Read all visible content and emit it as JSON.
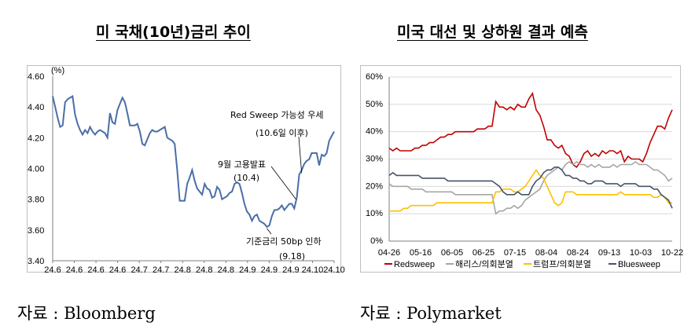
{
  "titles": {
    "left": "미 국채(10년)금리 추이",
    "right": "미국 대선 및 상하원 결과 예측"
  },
  "sources": {
    "left": "자료 : Bloomberg",
    "right": "자료 : Polymarket"
  },
  "chart_data": [
    {
      "type": "line",
      "unit_label": "(%)",
      "ylim": [
        3.4,
        4.6
      ],
      "y_ticks": [
        "4.60",
        "4.40",
        "4.20",
        "4.00",
        "3.80",
        "3.60",
        "3.40"
      ],
      "x_ticks": [
        "24.6",
        "24.6",
        "24.6",
        "24.6",
        "24.7",
        "24.7",
        "24.8",
        "24.8",
        "24.8",
        "24.9",
        "24.9",
        "24.9",
        "24.10",
        "24.10"
      ],
      "color": "#4a6ea8",
      "values": [
        4.47,
        4.4,
        4.33,
        4.27,
        4.28,
        4.43,
        4.45,
        4.46,
        4.47,
        4.35,
        4.29,
        4.25,
        4.22,
        4.25,
        4.23,
        4.27,
        4.24,
        4.22,
        4.24,
        4.25,
        4.24,
        4.23,
        4.2,
        4.36,
        4.3,
        4.29,
        4.38,
        4.42,
        4.46,
        4.43,
        4.36,
        4.28,
        4.28,
        4.28,
        4.29,
        4.24,
        4.16,
        4.15,
        4.19,
        4.23,
        4.25,
        4.24,
        4.24,
        4.25,
        4.26,
        4.27,
        4.2,
        4.19,
        4.18,
        4.16,
        3.99,
        3.79,
        3.79,
        3.79,
        3.9,
        3.94,
        3.99,
        3.92,
        3.87,
        3.85,
        3.83,
        3.9,
        3.87,
        3.86,
        3.81,
        3.82,
        3.88,
        3.86,
        3.8,
        3.81,
        3.82,
        3.84,
        3.85,
        3.9,
        3.91,
        3.9,
        3.84,
        3.77,
        3.72,
        3.7,
        3.66,
        3.69,
        3.7,
        3.66,
        3.65,
        3.64,
        3.62,
        3.63,
        3.69,
        3.73,
        3.73,
        3.74,
        3.76,
        3.73,
        3.75,
        3.77,
        3.77,
        3.74,
        3.81,
        3.96,
        3.99,
        4.03,
        4.05,
        4.06,
        4.1,
        4.1,
        4.1,
        4.02,
        4.09,
        4.08,
        4.1,
        4.18,
        4.21,
        4.24
      ],
      "annotations": [
        {
          "line1": "Red Sweep 가능성 우세",
          "line2": "(10.6일 이후)"
        },
        {
          "line1": "9월 고용발표",
          "line2": "(10.4)"
        },
        {
          "line1": "기준금리 50bp 인하",
          "line2": "(9.18)"
        }
      ]
    },
    {
      "type": "line",
      "ylim": [
        0,
        60
      ],
      "y_ticks": [
        "60%",
        "50%",
        "40%",
        "30%",
        "20%",
        "10%",
        "0%"
      ],
      "x_ticks": [
        "04-26",
        "05-16",
        "06-05",
        "06-25",
        "07-15",
        "08-04",
        "08-24",
        "09-13",
        "10-03",
        "10-22"
      ],
      "series": [
        {
          "name": "Redsweep",
          "color": "#c00000",
          "values": [
            34,
            33,
            34,
            33,
            33,
            33,
            33,
            34,
            34,
            35,
            35,
            36,
            36,
            37,
            38,
            38,
            39,
            39,
            40,
            40,
            40,
            40,
            40,
            40,
            41,
            41,
            41,
            42,
            42,
            51,
            49,
            49,
            48,
            49,
            48,
            50,
            49,
            49,
            52,
            54,
            48,
            46,
            42,
            37,
            37,
            35,
            34,
            35,
            32,
            31,
            28,
            27,
            29,
            32,
            33,
            31,
            32,
            31,
            33,
            32,
            33,
            33,
            32,
            33,
            29,
            31,
            30,
            30,
            30,
            29,
            32,
            36,
            39,
            42,
            42,
            41,
            45,
            48
          ]
        },
        {
          "name": "해리스/의회분열",
          "color": "#a6a6a6",
          "values": [
            21,
            20,
            20,
            20,
            20,
            20,
            19,
            19,
            19,
            19,
            18,
            18,
            18,
            18,
            18,
            18,
            18,
            18,
            17,
            17,
            17,
            17,
            17,
            17,
            17,
            17,
            17,
            17,
            17,
            10,
            11,
            11,
            12,
            12,
            13,
            12,
            13,
            15,
            16,
            17,
            18,
            19,
            22,
            24,
            25,
            26,
            27,
            26,
            28,
            29,
            28,
            29,
            28,
            28,
            27,
            28,
            27,
            28,
            27,
            27,
            27,
            28,
            27,
            28,
            28,
            28,
            28,
            29,
            28,
            28,
            28,
            27,
            26,
            26,
            25,
            24,
            22,
            23
          ]
        },
        {
          "name": "트럼프/의회분열",
          "color": "#ffc000",
          "values": [
            11,
            11,
            11,
            11,
            12,
            12,
            13,
            13,
            13,
            13,
            13,
            13,
            13,
            14,
            14,
            14,
            14,
            14,
            14,
            14,
            14,
            14,
            14,
            14,
            14,
            14,
            14,
            14,
            14,
            18,
            18,
            19,
            19,
            19,
            18,
            18,
            19,
            20,
            22,
            24,
            26,
            24,
            23,
            20,
            17,
            14,
            13,
            14,
            18,
            18,
            18,
            17,
            17,
            17,
            17,
            17,
            17,
            17,
            17,
            17,
            17,
            17,
            17,
            18,
            17,
            17,
            17,
            17,
            17,
            17,
            17,
            17,
            16,
            16,
            17,
            16,
            14,
            14
          ]
        },
        {
          "name": "Bluesweep",
          "color": "#44546a",
          "values": [
            24,
            25,
            24,
            24,
            24,
            24,
            24,
            24,
            24,
            23,
            23,
            23,
            23,
            23,
            23,
            23,
            22,
            22,
            22,
            22,
            22,
            22,
            22,
            22,
            22,
            22,
            22,
            22,
            22,
            21,
            20,
            18,
            17,
            17,
            17,
            18,
            17,
            17,
            17,
            20,
            22,
            23,
            25,
            26,
            26,
            27,
            27,
            26,
            24,
            24,
            23,
            23,
            22,
            22,
            21,
            21,
            22,
            22,
            22,
            21,
            21,
            21,
            21,
            20,
            21,
            21,
            21,
            21,
            20,
            20,
            20,
            20,
            19,
            19,
            17,
            16,
            15,
            12
          ]
        }
      ]
    }
  ]
}
